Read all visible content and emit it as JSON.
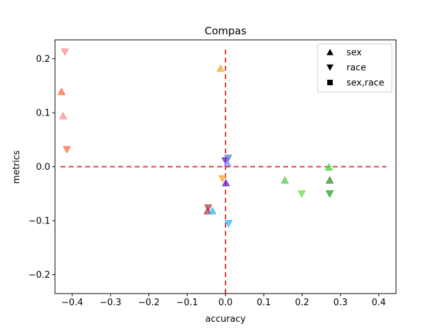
{
  "chart_data": {
    "type": "scatter",
    "title": "Compas",
    "xlabel": "accuracy",
    "ylabel": "metrics",
    "xlim": [
      -0.445,
      0.445
    ],
    "ylim": [
      -0.235,
      0.235
    ],
    "xticks": [
      -0.4,
      -0.3,
      -0.2,
      -0.1,
      0.0,
      0.1,
      0.2,
      0.3,
      0.4
    ],
    "xtick_labels": [
      "−0.4",
      "−0.3",
      "−0.2",
      "−0.1",
      "0.0",
      "0.1",
      "0.2",
      "0.3",
      "0.4"
    ],
    "yticks": [
      -0.2,
      -0.1,
      0.0,
      0.1,
      0.2
    ],
    "ytick_labels": [
      "−0.2",
      "−0.1",
      "0.0",
      "0.1",
      "0.2"
    ],
    "grid": false,
    "reference_lines": {
      "x": 0.0,
      "y": 0.0,
      "color": "#d62728",
      "style": "dashed"
    },
    "legend": {
      "position": "top-right",
      "entries": [
        {
          "label": "sex",
          "marker": "triangle-up"
        },
        {
          "label": "race",
          "marker": "triangle-down"
        },
        {
          "label": "sex,race",
          "marker": "square"
        }
      ]
    },
    "points": [
      {
        "x": -0.428,
        "y": 0.139,
        "marker": "triangle-up",
        "color": "#ff6a3d"
      },
      {
        "x": -0.424,
        "y": 0.094,
        "marker": "triangle-up",
        "color": "#ff8a8a"
      },
      {
        "x": -0.419,
        "y": 0.213,
        "marker": "triangle-down",
        "color": "#ff8a8a"
      },
      {
        "x": -0.414,
        "y": 0.032,
        "marker": "triangle-down",
        "color": "#ff6a3d"
      },
      {
        "x": -0.013,
        "y": 0.182,
        "marker": "triangle-up",
        "color": "#f5a623"
      },
      {
        "x": -0.008,
        "y": -0.022,
        "marker": "triangle-down",
        "color": "#f5a623"
      },
      {
        "x": 0.0,
        "y": 0.011,
        "marker": "triangle-down",
        "color": "#6a1fd1"
      },
      {
        "x": 0.007,
        "y": 0.016,
        "marker": "triangle-down",
        "color": "#5a7fd1"
      },
      {
        "x": 0.005,
        "y": 0.007,
        "marker": "triangle-up",
        "color": "#8a8aff"
      },
      {
        "x": 0.001,
        "y": -0.03,
        "marker": "triangle-up",
        "color": "#6a1fd1"
      },
      {
        "x": -0.047,
        "y": -0.082,
        "marker": "triangle-up",
        "color": "#b03a3a"
      },
      {
        "x": -0.045,
        "y": -0.076,
        "marker": "triangle-down",
        "color": "#b03a3a"
      },
      {
        "x": -0.034,
        "y": -0.082,
        "marker": "triangle-up",
        "color": "#2fb5f5"
      },
      {
        "x": 0.008,
        "y": -0.105,
        "marker": "triangle-down",
        "color": "#2fb5f5"
      },
      {
        "x": 0.155,
        "y": -0.025,
        "marker": "triangle-up",
        "color": "#4fcf4f"
      },
      {
        "x": 0.199,
        "y": -0.05,
        "marker": "triangle-down",
        "color": "#66dd44"
      },
      {
        "x": 0.27,
        "y": -0.001,
        "marker": "triangle-up",
        "color": "#33dd33"
      },
      {
        "x": 0.272,
        "y": -0.025,
        "marker": "triangle-up",
        "color": "#2e8b2e"
      },
      {
        "x": 0.272,
        "y": -0.05,
        "marker": "triangle-down",
        "color": "#1e9e1e"
      }
    ]
  }
}
